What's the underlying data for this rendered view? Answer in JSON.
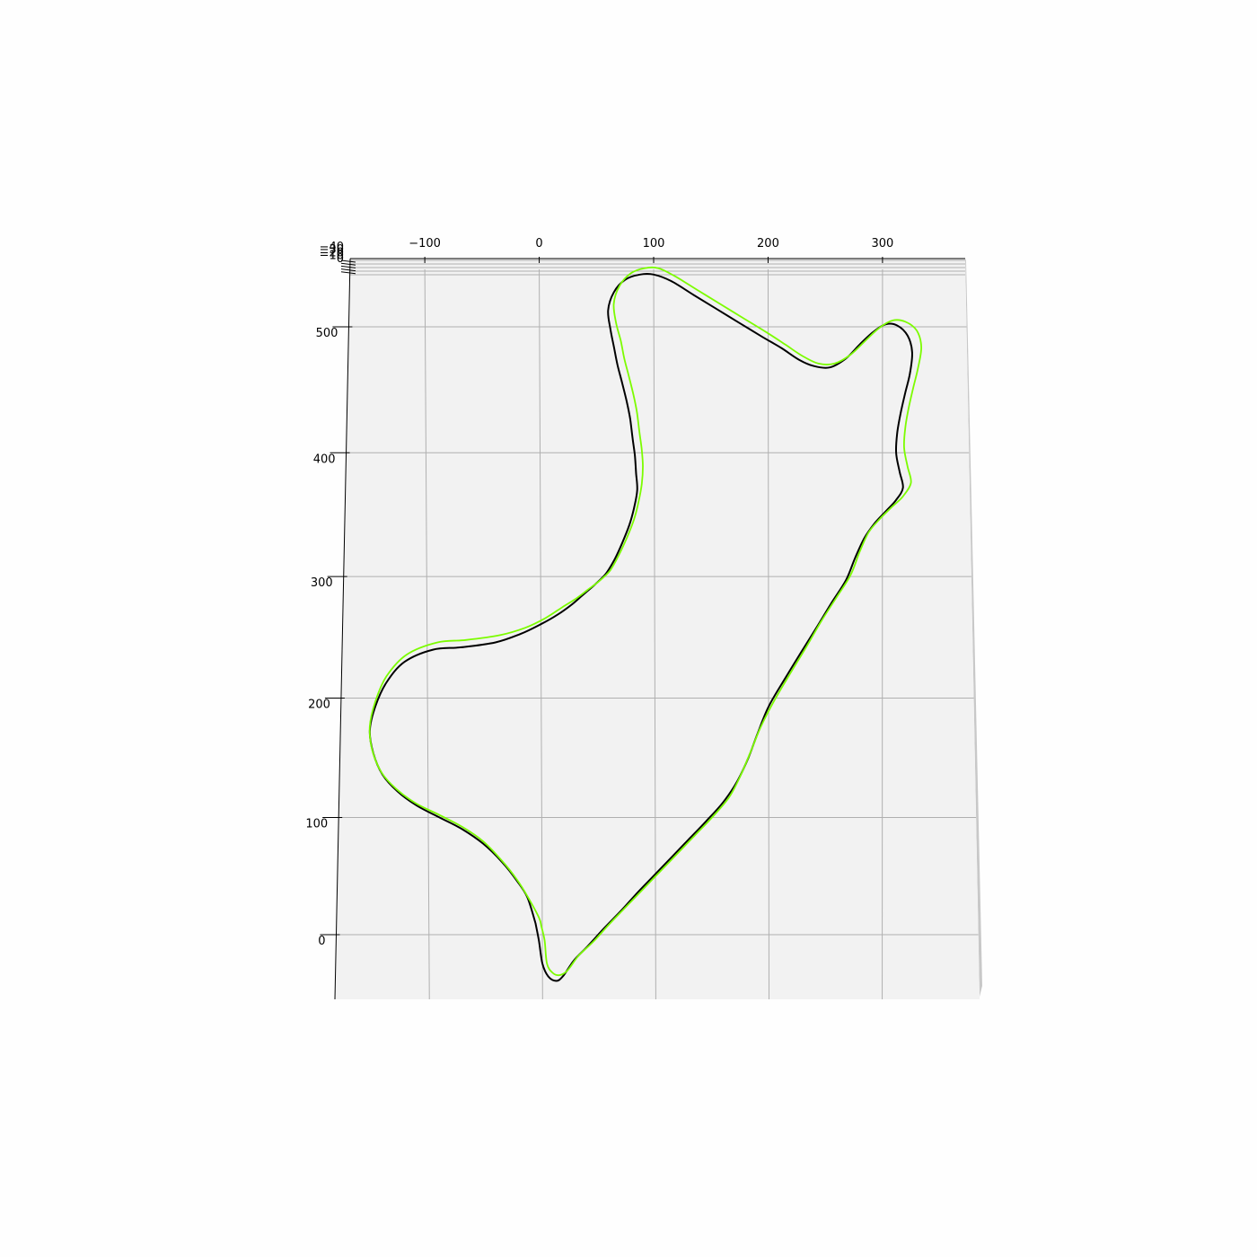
{
  "chart_data": {
    "type": "line",
    "projection": "3d",
    "x_ticks": [
      "−100",
      "0",
      "100",
      "200",
      "300"
    ],
    "x_tick_values": [
      -100,
      0,
      100,
      200,
      300
    ],
    "y_ticks": [
      "0",
      "100",
      "200",
      "300",
      "400",
      "500"
    ],
    "y_tick_values": [
      0,
      100,
      200,
      300,
      400,
      500
    ],
    "z_ticks": [
      "−40",
      "−30",
      "−20",
      "−10",
      "0"
    ],
    "xlim": [
      -172,
      372
    ],
    "ylim": [
      -55,
      560
    ],
    "grid": true,
    "colors": {
      "pane": "#f2f2f2",
      "grid": "#b0b0b0",
      "side_pane": "#c8c8c8"
    },
    "series": [
      {
        "color": "#000000",
        "points": [
          [
            -6,
            10
          ],
          [
            -3,
            -5
          ],
          [
            0,
            -25
          ],
          [
            5,
            -36
          ],
          [
            12,
            -40
          ],
          [
            18,
            -36
          ],
          [
            28,
            -22
          ],
          [
            40,
            -10
          ],
          [
            55,
            6
          ],
          [
            70,
            21
          ],
          [
            85,
            37
          ],
          [
            100,
            52
          ],
          [
            115,
            67
          ],
          [
            130,
            82
          ],
          [
            145,
            97
          ],
          [
            160,
            113
          ],
          [
            172,
            130
          ],
          [
            182,
            150
          ],
          [
            190,
            170
          ],
          [
            200,
            193
          ],
          [
            215,
            217
          ],
          [
            228,
            237
          ],
          [
            242,
            258
          ],
          [
            255,
            278
          ],
          [
            268,
            297
          ],
          [
            276,
            315
          ],
          [
            284,
            331
          ],
          [
            293,
            343
          ],
          [
            303,
            353
          ],
          [
            312,
            362
          ],
          [
            318,
            372
          ],
          [
            315,
            385
          ],
          [
            312,
            400
          ],
          [
            313,
            416
          ],
          [
            316,
            432
          ],
          [
            320,
            448
          ],
          [
            324,
            463
          ],
          [
            326,
            480
          ],
          [
            322,
            493
          ],
          [
            313,
            501
          ],
          [
            303,
            502
          ],
          [
            292,
            496
          ],
          [
            280,
            486
          ],
          [
            268,
            475
          ],
          [
            254,
            468
          ],
          [
            240,
            469
          ],
          [
            227,
            474
          ],
          [
            212,
            483
          ],
          [
            195,
            492
          ],
          [
            175,
            503
          ],
          [
            155,
            514
          ],
          [
            135,
            525
          ],
          [
            115,
            536
          ],
          [
            100,
            541
          ],
          [
            88,
            541
          ],
          [
            75,
            537
          ],
          [
            65,
            527
          ],
          [
            60,
            513
          ],
          [
            62,
            498
          ],
          [
            65,
            484
          ],
          [
            68,
            470
          ],
          [
            72,
            456
          ],
          [
            76,
            441
          ],
          [
            79,
            427
          ],
          [
            81,
            412
          ],
          [
            83,
            398
          ],
          [
            84,
            384
          ],
          [
            85,
            370
          ],
          [
            82,
            355
          ],
          [
            78,
            342
          ],
          [
            72,
            328
          ],
          [
            65,
            314
          ],
          [
            57,
            302
          ],
          [
            47,
            293
          ],
          [
            37,
            285
          ],
          [
            27,
            277
          ],
          [
            15,
            269
          ],
          [
            0,
            261
          ],
          [
            -18,
            253
          ],
          [
            -40,
            246
          ],
          [
            -70,
            242
          ],
          [
            -95,
            240
          ],
          [
            -120,
            230
          ],
          [
            -136,
            213
          ],
          [
            -146,
            193
          ],
          [
            -151,
            173
          ],
          [
            -148,
            154
          ],
          [
            -140,
            136
          ],
          [
            -127,
            122
          ],
          [
            -110,
            110
          ],
          [
            -90,
            100
          ],
          [
            -70,
            90
          ],
          [
            -52,
            78
          ],
          [
            -35,
            62
          ],
          [
            -22,
            46
          ],
          [
            -13,
            32
          ],
          [
            -6,
            10
          ]
        ]
      },
      {
        "color": "#7cfc00",
        "points": [
          [
            -1,
            8
          ],
          [
            2,
            -5
          ],
          [
            4,
            -25
          ],
          [
            9,
            -33
          ],
          [
            15,
            -35
          ],
          [
            22,
            -31
          ],
          [
            32,
            -18
          ],
          [
            45,
            -6
          ],
          [
            60,
            10
          ],
          [
            75,
            25
          ],
          [
            90,
            40
          ],
          [
            105,
            55
          ],
          [
            120,
            70
          ],
          [
            135,
            85
          ],
          [
            150,
            100
          ],
          [
            165,
            117
          ],
          [
            175,
            135
          ],
          [
            184,
            155
          ],
          [
            193,
            176
          ],
          [
            205,
            198
          ],
          [
            220,
            222
          ],
          [
            233,
            242
          ],
          [
            246,
            263
          ],
          [
            259,
            282
          ],
          [
            272,
            301
          ],
          [
            280,
            320
          ],
          [
            288,
            336
          ],
          [
            298,
            347
          ],
          [
            309,
            357
          ],
          [
            318,
            365
          ],
          [
            325,
            376
          ],
          [
            322,
            389
          ],
          [
            319,
            404
          ],
          [
            320,
            420
          ],
          [
            323,
            436
          ],
          [
            327,
            452
          ],
          [
            331,
            467
          ],
          [
            334,
            484
          ],
          [
            330,
            497
          ],
          [
            320,
            504
          ],
          [
            309,
            505
          ],
          [
            297,
            499
          ],
          [
            285,
            489
          ],
          [
            272,
            478
          ],
          [
            258,
            471
          ],
          [
            244,
            471
          ],
          [
            230,
            477
          ],
          [
            215,
            486
          ],
          [
            198,
            496
          ],
          [
            178,
            507
          ],
          [
            158,
            518
          ],
          [
            138,
            529
          ],
          [
            118,
            540
          ],
          [
            104,
            546
          ],
          [
            92,
            546
          ],
          [
            80,
            542
          ],
          [
            70,
            532
          ],
          [
            65,
            518
          ],
          [
            67,
            503
          ],
          [
            71,
            489
          ],
          [
            74,
            475
          ],
          [
            78,
            461
          ],
          [
            82,
            446
          ],
          [
            85,
            432
          ],
          [
            87,
            417
          ],
          [
            89,
            403
          ],
          [
            90,
            389
          ],
          [
            89,
            375
          ],
          [
            86,
            360
          ],
          [
            82,
            346
          ],
          [
            76,
            332
          ],
          [
            69,
            318
          ],
          [
            61,
            305
          ],
          [
            51,
            296
          ],
          [
            41,
            289
          ],
          [
            31,
            282
          ],
          [
            19,
            275
          ],
          [
            4,
            266
          ],
          [
            -14,
            258
          ],
          [
            -36,
            252
          ],
          [
            -66,
            248
          ],
          [
            -91,
            246
          ],
          [
            -118,
            236
          ],
          [
            -136,
            218
          ],
          [
            -146,
            197
          ],
          [
            -151,
            176
          ],
          [
            -149,
            157
          ],
          [
            -141,
            138
          ],
          [
            -128,
            124
          ],
          [
            -111,
            112
          ],
          [
            -90,
            102
          ],
          [
            -70,
            92
          ],
          [
            -52,
            80
          ],
          [
            -35,
            63
          ],
          [
            -22,
            47
          ],
          [
            -13,
            33
          ],
          [
            -3,
            15
          ],
          [
            -1,
            8
          ]
        ]
      }
    ]
  }
}
